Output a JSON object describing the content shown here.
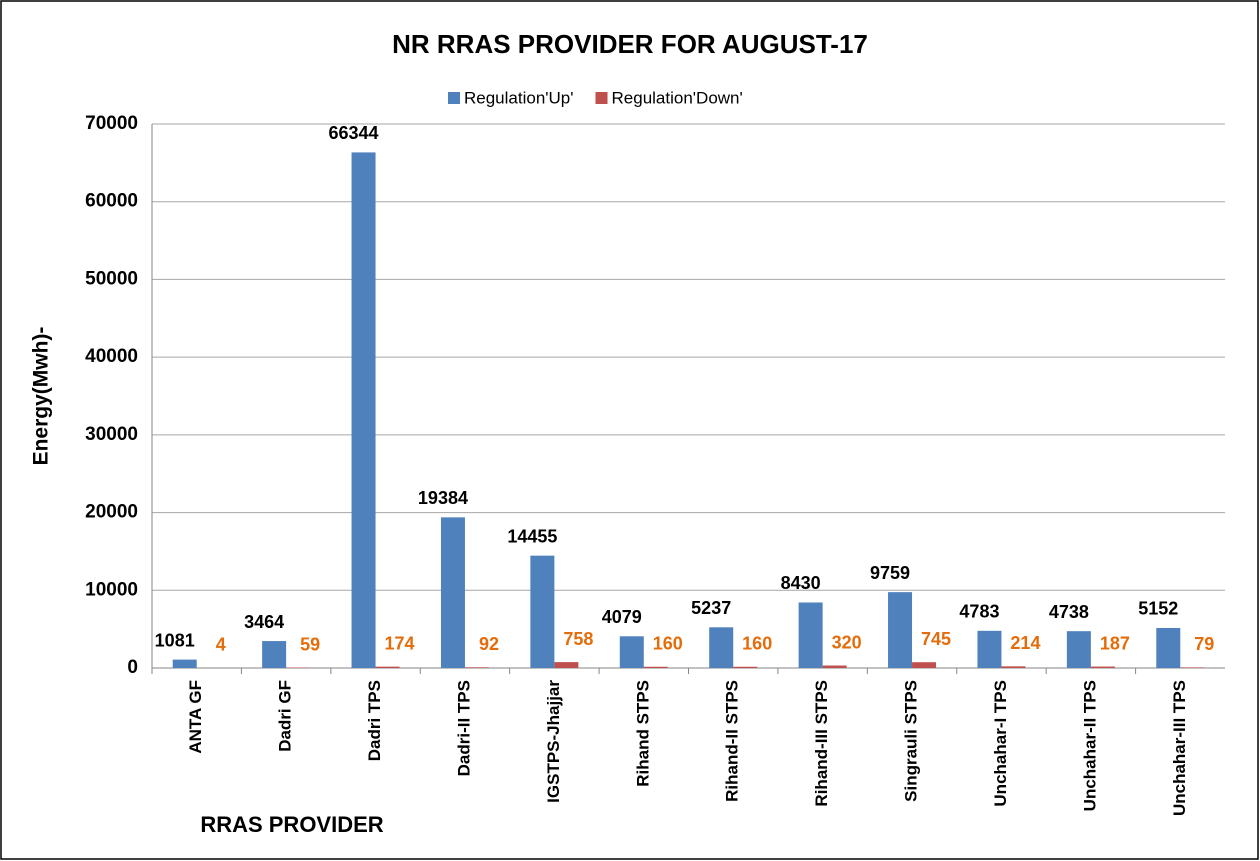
{
  "chart_data": {
    "type": "bar",
    "title": "NR RRAS PROVIDER FOR AUGUST-17",
    "x_label": "RRAS PROVIDER",
    "y_label": "Energy(Mwh)-",
    "categories": [
      "ANTA GF",
      "Dadri GF",
      "Dadri TPS",
      "Dadri-II TPS",
      "IGSTPS-Jhajjar",
      "Rihand STPS",
      "Rihand-II STPS",
      "Rihand-III STPS",
      "Singrauli STPS",
      "Unchahar-I TPS",
      "Unchahar-II TPS",
      "Unchahar-III TPS"
    ],
    "series": [
      {
        "name": "Regulation'Up'",
        "color": "#4f81bd",
        "label_color": "#000000",
        "values": [
          1081,
          3464,
          66344,
          19384,
          14455,
          4079,
          5237,
          8430,
          9759,
          4783,
          4738,
          5152
        ]
      },
      {
        "name": "Regulation'Down'",
        "color": "#c0504d",
        "label_color": "#e46c0a",
        "values": [
          4,
          59,
          174,
          92,
          758,
          160,
          160,
          320,
          745,
          214,
          187,
          79
        ]
      }
    ],
    "ylim": [
      0,
      70000
    ],
    "yticks": [
      0,
      10000,
      20000,
      30000,
      40000,
      50000,
      60000,
      70000
    ],
    "grid": true,
    "legend": "top"
  }
}
